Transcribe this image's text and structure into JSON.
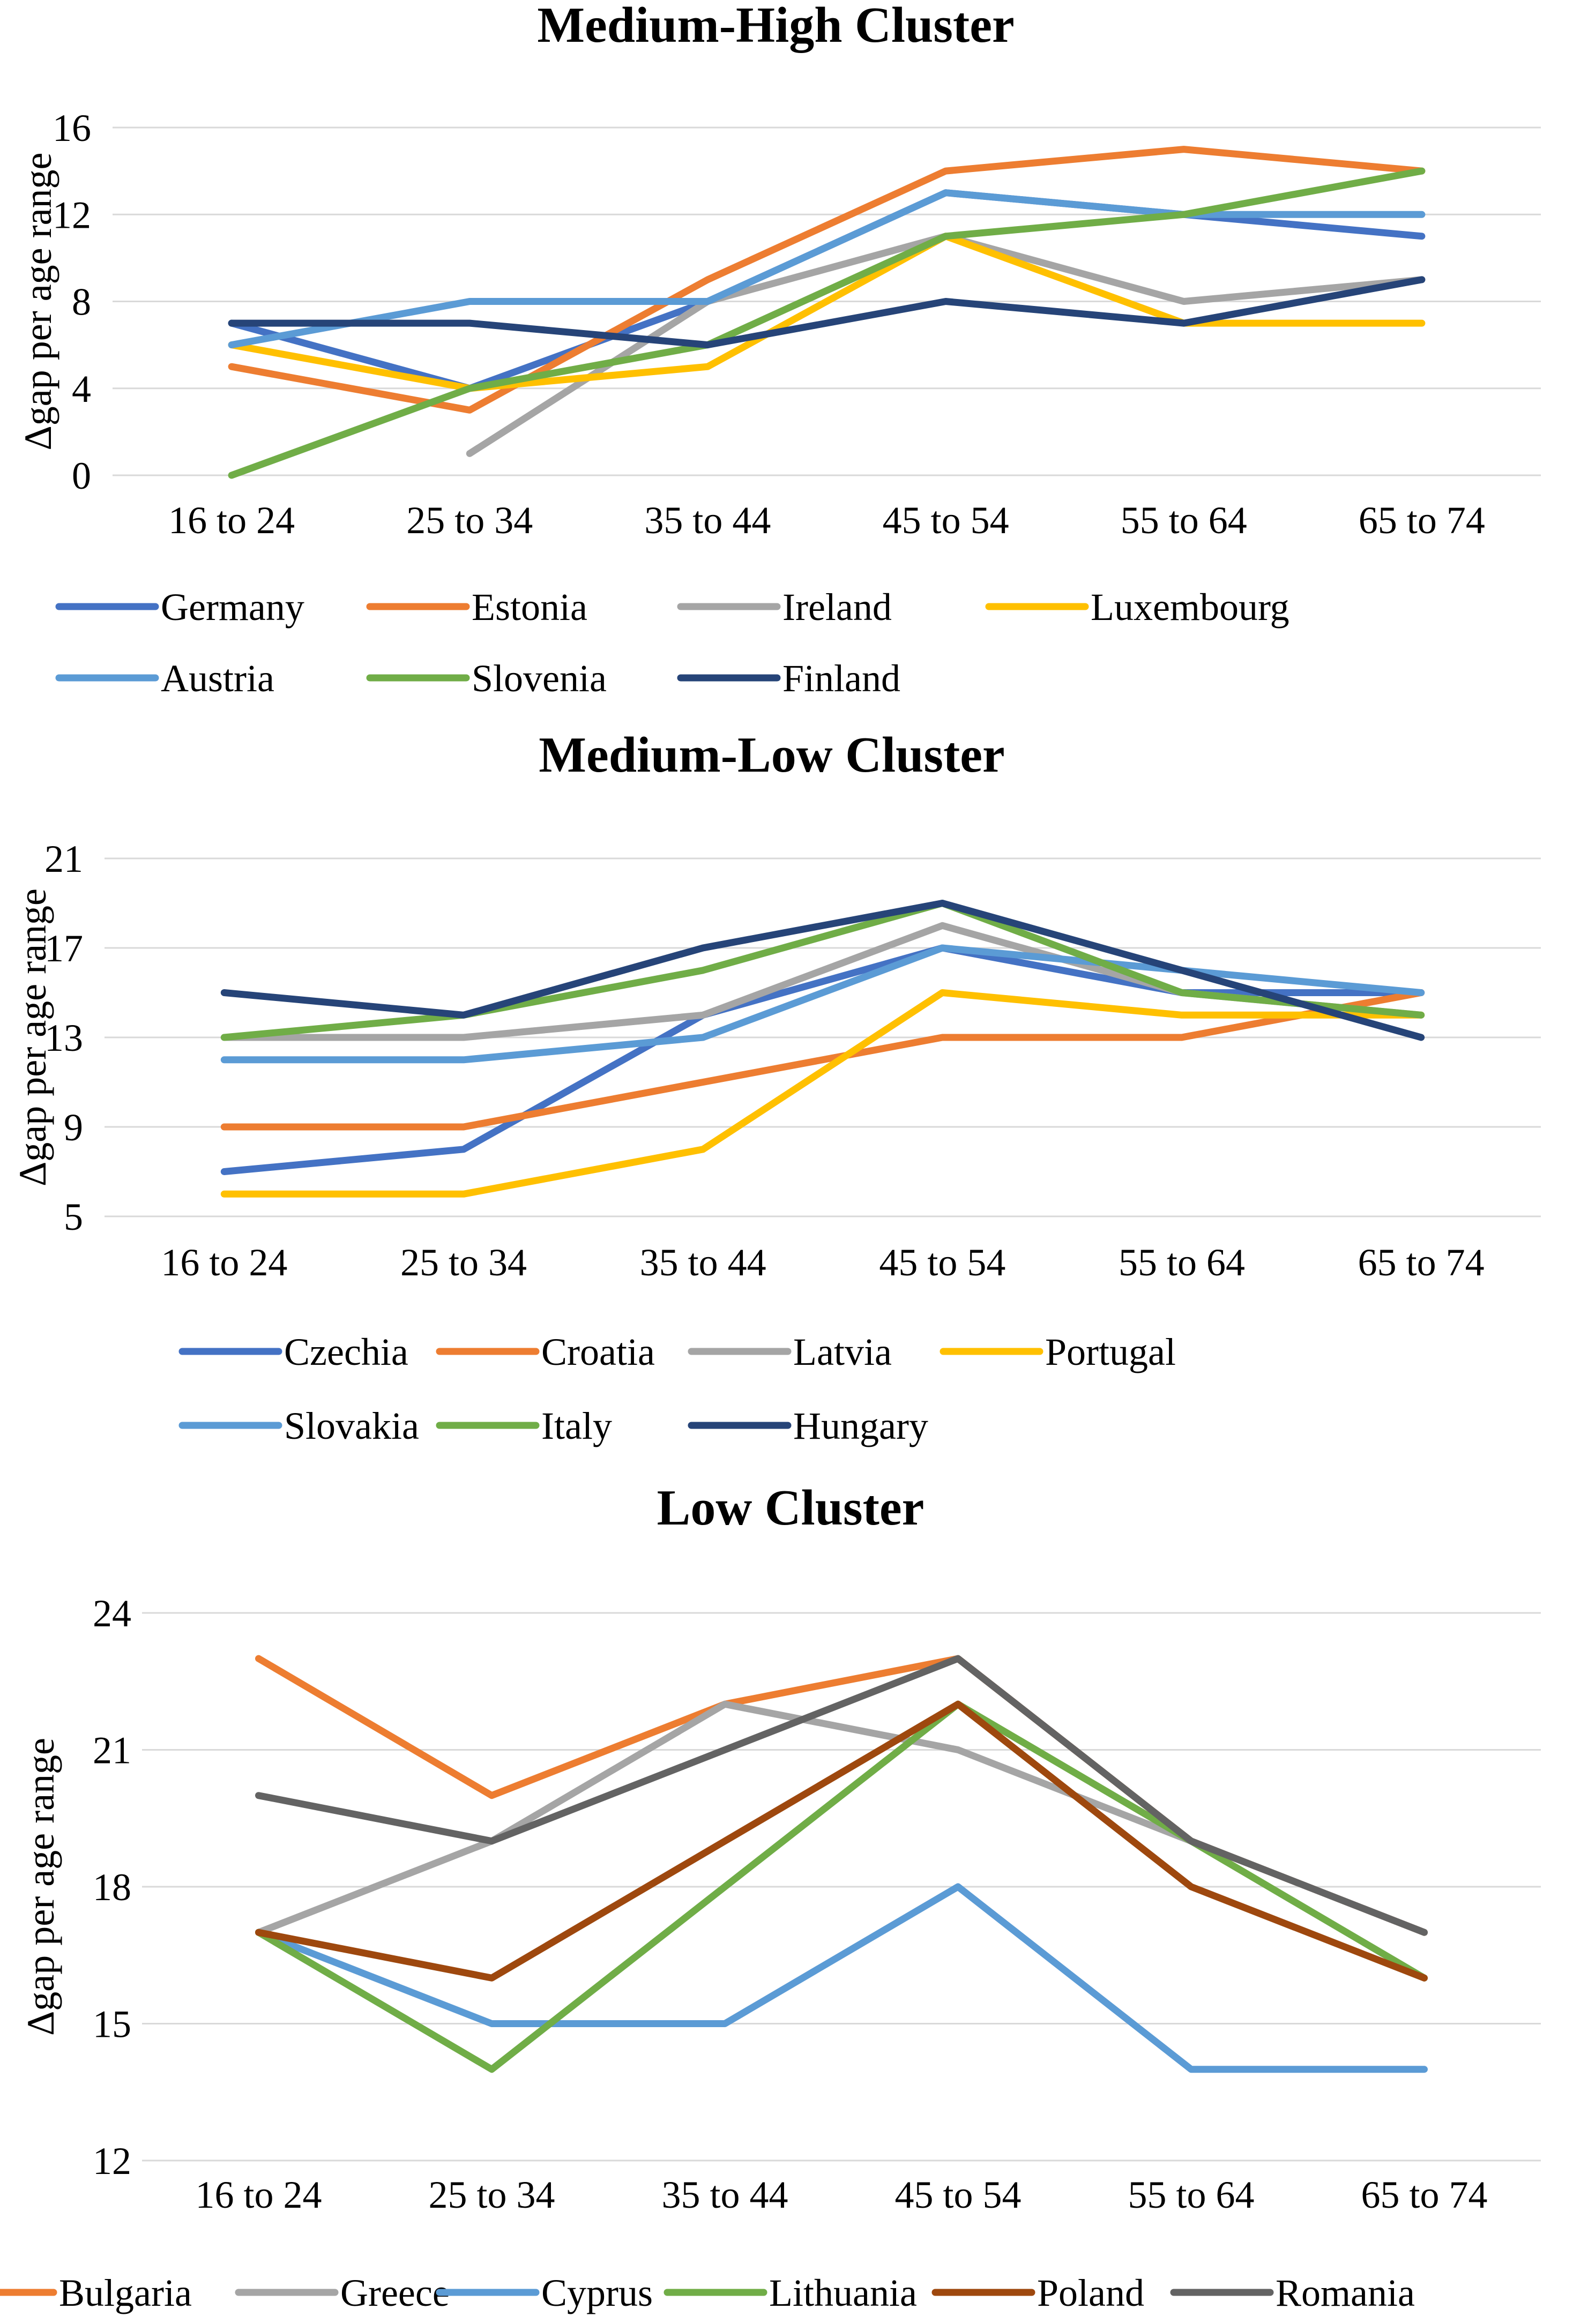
{
  "chart_data": [
    {
      "type": "line",
      "title": "Medium-High Cluster",
      "ylabel": "Δgap per age range",
      "xlabel": "",
      "ylim": [
        0,
        16
      ],
      "yticks": [
        0,
        4,
        8,
        12,
        16
      ],
      "grid": true,
      "legend_position": "bottom",
      "categories": [
        "16 to 24",
        "25 to 34",
        "35 to 44",
        "45 to 54",
        "55 to 64",
        "65 to 74"
      ],
      "series": [
        {
          "name": "Germany",
          "color": "#4472C4",
          "values": [
            7,
            4,
            8,
            13,
            12,
            11
          ]
        },
        {
          "name": "Estonia",
          "color": "#ED7D31",
          "values": [
            5,
            3,
            9,
            14,
            15,
            14
          ]
        },
        {
          "name": "Ireland",
          "color": "#A5A5A5",
          "values": [
            null,
            1,
            8,
            11,
            8,
            9
          ]
        },
        {
          "name": "Luxembourg",
          "color": "#FFC000",
          "values": [
            6,
            4,
            5,
            11,
            7,
            7
          ]
        },
        {
          "name": "Austria",
          "color": "#5B9BD5",
          "values": [
            6,
            8,
            8,
            13,
            12,
            12
          ]
        },
        {
          "name": "Slovenia",
          "color": "#70AD47",
          "values": [
            0,
            4,
            6,
            11,
            12,
            14
          ]
        },
        {
          "name": "Finland",
          "color": "#264478",
          "values": [
            7,
            7,
            6,
            8,
            7,
            9
          ]
        }
      ]
    },
    {
      "type": "line",
      "title": "Medium-Low Cluster",
      "ylabel": "Δgap per age range",
      "xlabel": "",
      "ylim": [
        5,
        21
      ],
      "yticks": [
        5,
        9,
        13,
        17,
        21
      ],
      "grid": true,
      "legend_position": "bottom",
      "categories": [
        "16 to 24",
        "25 to 34",
        "35 to 44",
        "45 to 54",
        "55 to 64",
        "65 to 74"
      ],
      "series": [
        {
          "name": "Czechia",
          "color": "#4472C4",
          "values": [
            7,
            8,
            14,
            17,
            15,
            15
          ]
        },
        {
          "name": "Croatia",
          "color": "#ED7D31",
          "values": [
            9,
            9,
            11,
            13,
            13,
            15
          ]
        },
        {
          "name": "Latvia",
          "color": "#A5A5A5",
          "values": [
            13,
            13,
            14,
            18,
            15,
            14
          ]
        },
        {
          "name": "Portugal",
          "color": "#FFC000",
          "values": [
            6,
            6,
            8,
            15,
            14,
            14
          ]
        },
        {
          "name": "Slovakia",
          "color": "#5B9BD5",
          "values": [
            12,
            12,
            13,
            17,
            16,
            15
          ]
        },
        {
          "name": "Italy",
          "color": "#70AD47",
          "values": [
            13,
            14,
            16,
            19,
            15,
            14
          ]
        },
        {
          "name": "Hungary",
          "color": "#264478",
          "values": [
            15,
            14,
            17,
            19,
            16,
            13
          ]
        }
      ]
    },
    {
      "type": "line",
      "title": "Low Cluster",
      "ylabel": "Δgap per age range",
      "xlabel": "",
      "ylim": [
        12,
        24
      ],
      "yticks": [
        12,
        15,
        18,
        21,
        24
      ],
      "grid": true,
      "legend_position": "bottom",
      "categories": [
        "16 to 24",
        "25 to 34",
        "35 to 44",
        "45 to 54",
        "55 to 64",
        "65 to 74"
      ],
      "series": [
        {
          "name": "Bulgaria",
          "color": "#ED7D31",
          "values": [
            23,
            20,
            22,
            23,
            19,
            17
          ]
        },
        {
          "name": "Greece",
          "color": "#A5A5A5",
          "values": [
            17,
            19,
            22,
            21,
            19,
            17
          ]
        },
        {
          "name": "Cyprus",
          "color": "#5B9BD5",
          "values": [
            17,
            15,
            15,
            18,
            14,
            14
          ]
        },
        {
          "name": "Lithuania",
          "color": "#70AD47",
          "values": [
            17,
            14,
            18,
            22,
            19,
            16
          ]
        },
        {
          "name": "Poland",
          "color": "#9E480E",
          "values": [
            17,
            16,
            19,
            22,
            18,
            16
          ]
        },
        {
          "name": "Romania",
          "color": "#636363",
          "values": [
            20,
            19,
            21,
            23,
            19,
            17
          ]
        }
      ]
    }
  ]
}
